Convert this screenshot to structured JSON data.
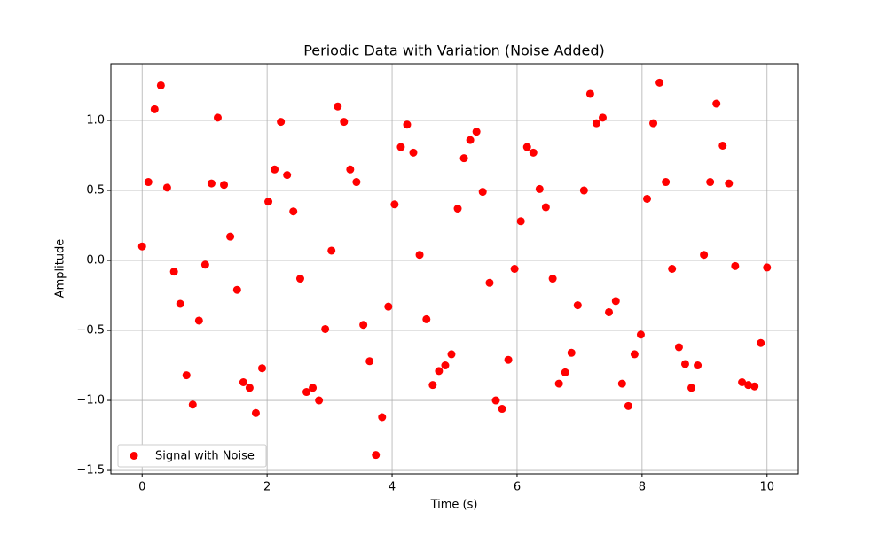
{
  "chart_data": {
    "type": "scatter",
    "title": "Periodic Data with Variation (Noise Added)",
    "x_label": "Time (s)",
    "y_label": "Amplitude",
    "x": [
      0,
      0.1,
      0.2,
      0.3,
      0.4,
      0.51,
      0.61,
      0.71,
      0.81,
      0.91,
      1.01,
      1.11,
      1.21,
      1.31,
      1.41,
      1.52,
      1.62,
      1.72,
      1.82,
      1.92,
      2.02,
      2.12,
      2.22,
      2.32,
      2.42,
      2.53,
      2.63,
      2.73,
      2.83,
      2.93,
      3.03,
      3.13,
      3.23,
      3.33,
      3.43,
      3.54,
      3.64,
      3.74,
      3.84,
      3.94,
      4.04,
      4.14,
      4.24,
      4.34,
      4.44,
      4.55,
      4.65,
      4.75,
      4.85,
      4.95,
      5.05,
      5.15,
      5.25,
      5.35,
      5.45,
      5.56,
      5.66,
      5.76,
      5.86,
      5.96,
      6.06,
      6.16,
      6.26,
      6.36,
      6.46,
      6.57,
      6.67,
      6.77,
      6.87,
      6.97,
      7.07,
      7.17,
      7.27,
      7.37,
      7.47,
      7.58,
      7.68,
      7.78,
      7.88,
      7.98,
      8.08,
      8.18,
      8.28,
      8.38,
      8.48,
      8.59,
      8.69,
      8.79,
      8.89,
      8.99,
      9.09,
      9.19,
      9.29,
      9.39,
      9.49,
      9.6,
      9.7,
      9.8,
      9.9,
      10
    ],
    "series": [
      {
        "name": "Signal with Noise",
        "color": "#ff0000",
        "values": [
          0.1,
          0.56,
          1.08,
          1.25,
          0.52,
          -0.08,
          -0.31,
          -0.82,
          -1.03,
          -0.43,
          -0.03,
          0.55,
          1.02,
          0.54,
          0.17,
          -0.21,
          -0.87,
          -0.91,
          -1.09,
          -0.77,
          0.42,
          0.65,
          0.99,
          0.61,
          0.35,
          -0.13,
          -0.94,
          -0.91,
          -1.0,
          -0.49,
          0.07,
          1.1,
          0.99,
          0.65,
          0.56,
          -0.46,
          -0.72,
          -1.39,
          -1.12,
          -0.33,
          0.4,
          0.81,
          0.97,
          0.77,
          0.04,
          -0.42,
          -0.89,
          -0.79,
          -0.75,
          -0.67,
          0.37,
          0.73,
          0.86,
          0.92,
          0.49,
          -0.16,
          -1.0,
          -1.06,
          -0.71,
          -0.06,
          0.28,
          0.81,
          0.77,
          0.51,
          0.38,
          -0.13,
          -0.88,
          -0.8,
          -0.66,
          -0.32,
          0.5,
          1.19,
          0.98,
          1.02,
          -0.37,
          -0.29,
          -0.88,
          -1.04,
          -0.67,
          -0.53,
          0.44,
          0.98,
          1.27,
          0.56,
          -0.06,
          -0.62,
          -0.74,
          -0.91,
          -0.75,
          0.04,
          0.56,
          1.12,
          0.82,
          0.55,
          -0.04,
          -0.87,
          -0.89,
          -0.9,
          -0.59,
          -0.05
        ]
      }
    ],
    "xlim": [
      -0.5,
      10.5
    ],
    "xticks": [
      0,
      2,
      4,
      6,
      8,
      10
    ],
    "ylim": [
      -1.525,
      1.405
    ],
    "yticks": [
      {
        "value": -1.5,
        "label": "−1.5"
      },
      {
        "value": -1,
        "label": "−1.0"
      },
      {
        "value": -0.5,
        "label": "−0.5"
      },
      {
        "value": 0,
        "label": "0.0"
      },
      0.5,
      {
        "value": 1,
        "label": "1.0"
      }
    ],
    "grid": true,
    "legend": "lower left"
  }
}
